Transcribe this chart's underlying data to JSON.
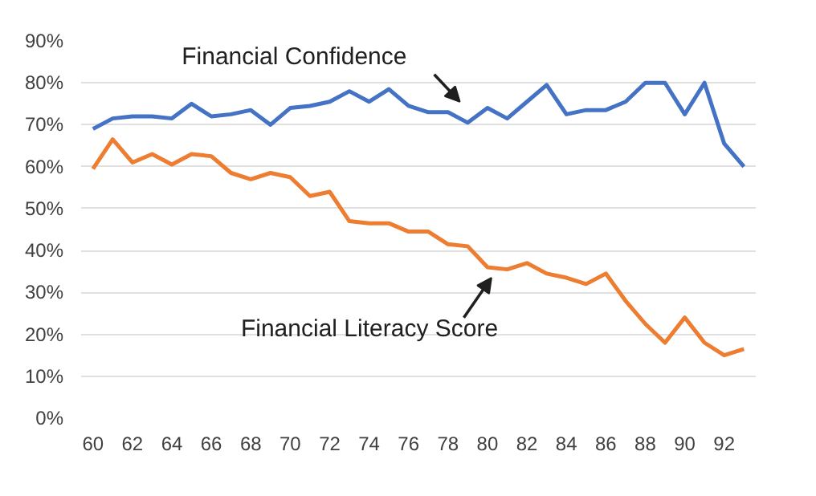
{
  "chart_data": {
    "type": "line",
    "categories": [
      "60",
      null,
      "62",
      null,
      "64",
      null,
      "66",
      null,
      "68",
      null,
      "70",
      null,
      "72",
      null,
      "74",
      null,
      "76",
      null,
      "78",
      null,
      "80",
      null,
      "82",
      null,
      "84",
      null,
      "86",
      null,
      "88",
      null,
      "90",
      null,
      "92",
      null
    ],
    "series": [
      {
        "name": "Financial Confidence",
        "color": "#4472c4",
        "values": [
          69,
          71.5,
          72,
          72,
          71.5,
          75,
          72,
          72.5,
          73.5,
          70,
          74,
          74.5,
          75.5,
          78,
          75.5,
          78.5,
          74.5,
          73,
          73,
          70.5,
          74,
          71.5,
          75.5,
          79.5,
          72.5,
          73.5,
          73.5,
          75.5,
          80,
          80,
          72.5,
          80,
          65.5,
          60
        ]
      },
      {
        "name": "Financial Literacy Score",
        "color": "#ed7d31",
        "values": [
          59.5,
          66.5,
          61,
          63,
          60.5,
          63,
          62.5,
          58.5,
          57,
          58.5,
          57.5,
          53,
          54,
          47,
          46.5,
          46.5,
          44.5,
          44.5,
          41.5,
          41,
          36,
          35.5,
          37,
          34.5,
          33.5,
          32,
          34.5,
          28,
          22.5,
          18,
          24,
          18,
          15,
          16.5
        ]
      }
    ],
    "ylim": [
      0,
      90
    ],
    "yticks": [
      {
        "value": 0,
        "label": "0%"
      },
      {
        "value": 10,
        "label": "10%"
      },
      {
        "value": 20,
        "label": "20%"
      },
      {
        "value": 30,
        "label": "30%"
      },
      {
        "value": 40,
        "label": "40%"
      },
      {
        "value": 50,
        "label": "50%"
      },
      {
        "value": 60,
        "label": "60%"
      },
      {
        "value": 70,
        "label": "70%"
      },
      {
        "value": 80,
        "label": "80%"
      },
      {
        "value": 90,
        "label": "90%"
      }
    ],
    "grid": "y",
    "legend": false
  }
}
